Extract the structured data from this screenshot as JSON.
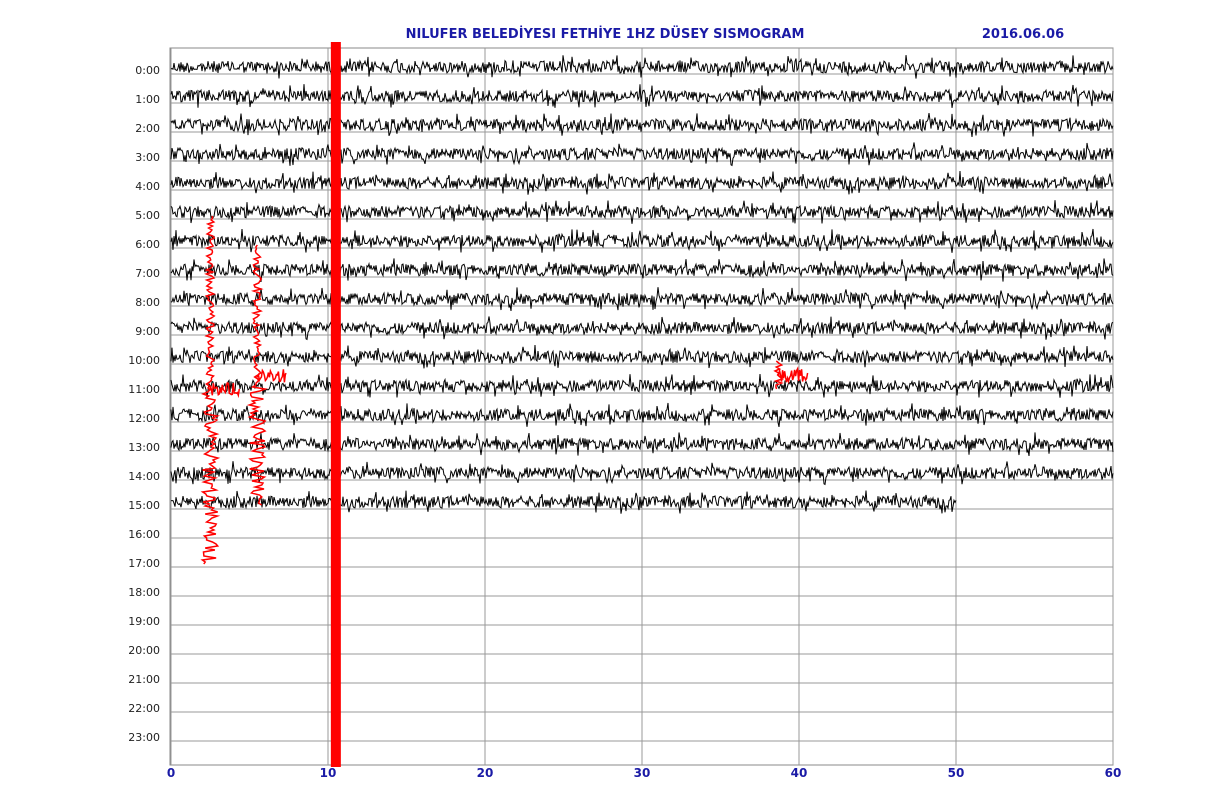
{
  "chart_data": {
    "type": "helicorder",
    "title": "NILUFER  BELEDİYESI FETHİYE 1HZ DÜSEY SISMOGRAM",
    "date": "2016.06.06",
    "categories": [
      "0:00",
      "1:00",
      "2:00",
      "3:00",
      "4:00",
      "5:00",
      "6:00",
      "7:00",
      "8:00",
      "9:00",
      "10:00",
      "11:00",
      "12:00",
      "13:00",
      "14:00",
      "15:00",
      "16:00",
      "17:00",
      "18:00",
      "19:00",
      "20:00",
      "21:00",
      "22:00",
      "23:00"
    ],
    "values": [
      60,
      60,
      60,
      60,
      60,
      60,
      60,
      60,
      60,
      60,
      60,
      60,
      60,
      60,
      60,
      50,
      null,
      null,
      null,
      null,
      null,
      null,
      null,
      null
    ],
    "xlim": [
      0,
      60
    ],
    "xticks": [
      0,
      10,
      20,
      30,
      40,
      50,
      60
    ],
    "grid": true,
    "color": "#000000",
    "event_color": "#ff0000",
    "events": [
      {
        "x": 2.5,
        "from": 5,
        "to": 17
      },
      {
        "x": 5.5,
        "from": 6,
        "to": 15
      },
      {
        "x": 10.5,
        "from": -1,
        "to": 24
      },
      {
        "x": 38.7,
        "from": 10,
        "to": 11
      }
    ]
  }
}
